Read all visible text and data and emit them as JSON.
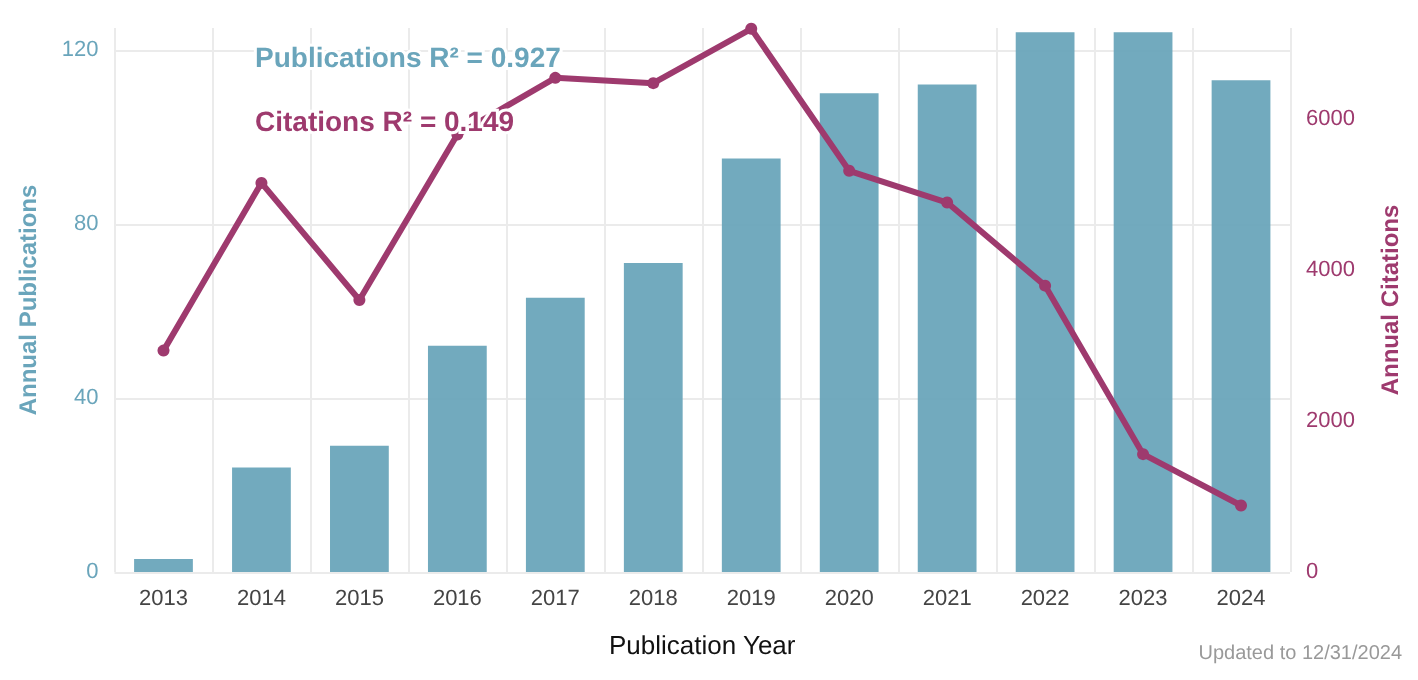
{
  "chart_data": {
    "type": "bar",
    "xlabel": "Publication Year",
    "ylabel": "Annual Publications",
    "y2label": "Annual Citations",
    "categories": [
      "2013",
      "2014",
      "2015",
      "2016",
      "2017",
      "2018",
      "2019",
      "2020",
      "2021",
      "2022",
      "2023",
      "2024"
    ],
    "series": [
      {
        "color": "#6aa5bb",
        "values": [
          3,
          24,
          29,
          52,
          63,
          71,
          95,
          110,
          112,
          124,
          124,
          113
        ]
      },
      {
        "type": "line",
        "axis": "y2",
        "color": "#9e3a6e",
        "values": [
          2930,
          5150,
          3600,
          5790,
          6540,
          6470,
          7190,
          5310,
          4890,
          3790,
          1560,
          880
        ]
      }
    ],
    "ylim": [
      0,
      125
    ],
    "yticks": [
      0,
      40,
      80,
      120
    ],
    "y2lim": [
      0,
      7200
    ],
    "y2ticks": [
      0,
      2000,
      4000,
      6000
    ],
    "annotations": [
      "Publications R² = 0.927",
      "Citations R² = 0.149",
      "Updated to 12/31/2024"
    ],
    "grid": true,
    "marker": "circle",
    "line_style": "solid"
  }
}
